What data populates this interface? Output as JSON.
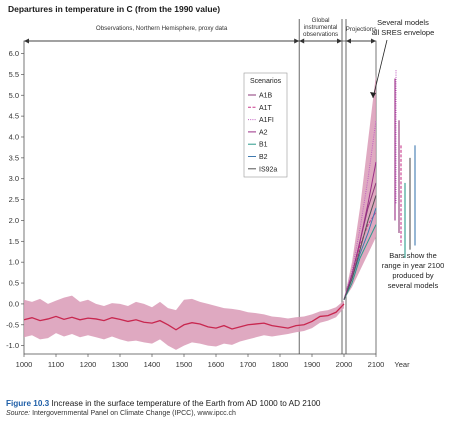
{
  "chart_data": {
    "type": "line",
    "ylabel": "Departures in temperature in C (from the 1990 value)",
    "xlabel": "Year",
    "xlim": [
      1000,
      2100
    ],
    "ylim": [
      -1.2,
      6.3
    ],
    "x_ticks": [
      1000,
      1100,
      1200,
      1300,
      1400,
      1500,
      1600,
      1700,
      1800,
      1900,
      2000,
      2100
    ],
    "y_ticks": [
      -1.0,
      -0.5,
      0.0,
      0.5,
      1.0,
      1.5,
      2.0,
      2.5,
      3.0,
      3.5,
      4.0,
      4.5,
      5.0,
      5.5,
      6.0
    ],
    "periods": [
      {
        "label": "Observations, Northern Hemisphere, proxy data",
        "start": 1000,
        "end": 1860
      },
      {
        "label": "Global instrumental observations",
        "start": 1860,
        "end": 2000
      },
      {
        "label": "Projections",
        "start": 2000,
        "end": 2100
      }
    ],
    "proxy_series": {
      "x": [
        1000,
        1025,
        1050,
        1075,
        1100,
        1125,
        1150,
        1175,
        1200,
        1225,
        1250,
        1275,
        1300,
        1325,
        1350,
        1375,
        1400,
        1425,
        1450,
        1475,
        1500,
        1525,
        1550,
        1575,
        1600,
        1625,
        1650,
        1675,
        1700,
        1725,
        1750,
        1775,
        1800,
        1825,
        1850,
        1875,
        1900,
        1925,
        1950,
        1975,
        2000
      ],
      "y": [
        -0.38,
        -0.33,
        -0.4,
        -0.36,
        -0.3,
        -0.37,
        -0.32,
        -0.38,
        -0.34,
        -0.36,
        -0.4,
        -0.33,
        -0.37,
        -0.42,
        -0.38,
        -0.44,
        -0.46,
        -0.4,
        -0.5,
        -0.62,
        -0.5,
        -0.45,
        -0.48,
        -0.55,
        -0.58,
        -0.52,
        -0.6,
        -0.55,
        -0.5,
        -0.48,
        -0.46,
        -0.52,
        -0.55,
        -0.58,
        -0.52,
        -0.5,
        -0.42,
        -0.3,
        -0.28,
        -0.2,
        0.0
      ],
      "band_upper": [
        0.1,
        0.05,
        0.12,
        0.0,
        0.08,
        0.15,
        0.2,
        0.05,
        0.1,
        0.0,
        -0.05,
        0.02,
        0.0,
        -0.05,
        0.05,
        0.0,
        -0.08,
        0.05,
        -0.1,
        -0.15,
        0.1,
        0.12,
        0.05,
        0.0,
        -0.05,
        -0.1,
        -0.12,
        -0.15,
        -0.2,
        -0.22,
        -0.25,
        -0.3,
        -0.32,
        -0.35,
        -0.32,
        -0.3,
        -0.25,
        -0.18,
        -0.15,
        -0.08,
        0.08
      ],
      "band_lower": [
        -0.8,
        -0.75,
        -0.85,
        -0.82,
        -0.7,
        -0.78,
        -0.72,
        -0.8,
        -0.75,
        -0.8,
        -0.85,
        -0.78,
        -0.85,
        -0.9,
        -0.88,
        -0.92,
        -0.95,
        -0.85,
        -1.0,
        -1.1,
        -1.0,
        -0.92,
        -0.95,
        -1.0,
        -1.02,
        -0.95,
        -0.98,
        -0.9,
        -0.85,
        -0.8,
        -0.75,
        -0.78,
        -0.75,
        -0.72,
        -0.68,
        -0.65,
        -0.58,
        -0.45,
        -0.4,
        -0.32,
        -0.1
      ]
    },
    "projection_envelope": {
      "x": [
        2000,
        2025,
        2050,
        2075,
        2100
      ],
      "upper": [
        0.1,
        1.0,
        2.3,
        3.9,
        5.5
      ],
      "lower": [
        0.1,
        0.4,
        0.8,
        1.2,
        1.6
      ]
    },
    "series": [
      {
        "name": "A1B",
        "x": [
          2000,
          2025,
          2050,
          2075,
          2100
        ],
        "y": [
          0.1,
          0.7,
          1.5,
          2.3,
          2.9
        ]
      },
      {
        "name": "A1T",
        "x": [
          2000,
          2025,
          2050,
          2075,
          2100
        ],
        "y": [
          0.1,
          0.7,
          1.4,
          1.9,
          2.2
        ]
      },
      {
        "name": "A1FI",
        "x": [
          2000,
          2025,
          2050,
          2075,
          2100
        ],
        "y": [
          0.1,
          0.8,
          1.8,
          3.0,
          4.4
        ]
      },
      {
        "name": "A2",
        "x": [
          2000,
          2025,
          2050,
          2075,
          2100
        ],
        "y": [
          0.1,
          0.7,
          1.5,
          2.4,
          3.4
        ]
      },
      {
        "name": "B1",
        "x": [
          2000,
          2025,
          2050,
          2075,
          2100
        ],
        "y": [
          0.1,
          0.5,
          1.1,
          1.5,
          1.9
        ]
      },
      {
        "name": "B2",
        "x": [
          2000,
          2025,
          2050,
          2075,
          2100
        ],
        "y": [
          0.1,
          0.6,
          1.2,
          1.7,
          2.3
        ]
      },
      {
        "name": "IS92a",
        "x": [
          2000,
          2025,
          2050,
          2075,
          2100
        ],
        "y": [
          0.1,
          0.6,
          1.3,
          2.0,
          2.6
        ]
      }
    ],
    "range_bars_2100": [
      {
        "name": "A1B",
        "low": 1.7,
        "high": 4.4
      },
      {
        "name": "A1T",
        "low": 1.4,
        "high": 3.8
      },
      {
        "name": "A1FI",
        "low": 2.4,
        "high": 5.6
      },
      {
        "name": "A2",
        "low": 2.0,
        "high": 5.4
      },
      {
        "name": "B1",
        "low": 1.1,
        "high": 2.9
      },
      {
        "name": "B2",
        "low": 1.4,
        "high": 3.8
      },
      {
        "name": "IS92a",
        "low": 1.3,
        "high": 3.5
      }
    ],
    "legend": {
      "title": "Scenarios",
      "entries": [
        "A1B",
        "A1T",
        "A1FI",
        "A2",
        "B1",
        "B2",
        "IS92a"
      ]
    },
    "annotations": {
      "envelope": "Several models all SRES envelope",
      "bars": "Bars show the range in year 2100 produced by several models"
    }
  },
  "colors": {
    "band": "#d99ab6",
    "proxy_line": "#c8274f",
    "A1B": "#8b3a78",
    "A1T": "#c83a8c",
    "A1FI": "#c060c0",
    "A2": "#9a2f86",
    "B1": "#2a9a8a",
    "B2": "#3f7ab0",
    "IS92a": "#555555",
    "caption_accent": "#1f5fa8"
  },
  "caption": {
    "figure_number": "Figure 10.3",
    "title": "Increase in the surface temperature of the Earth from AD 1000 to AD 2100",
    "source_label": "Source:",
    "source_text": "Intergovernmental Panel on Climate Change (IPCC), www.ipcc.ch"
  }
}
